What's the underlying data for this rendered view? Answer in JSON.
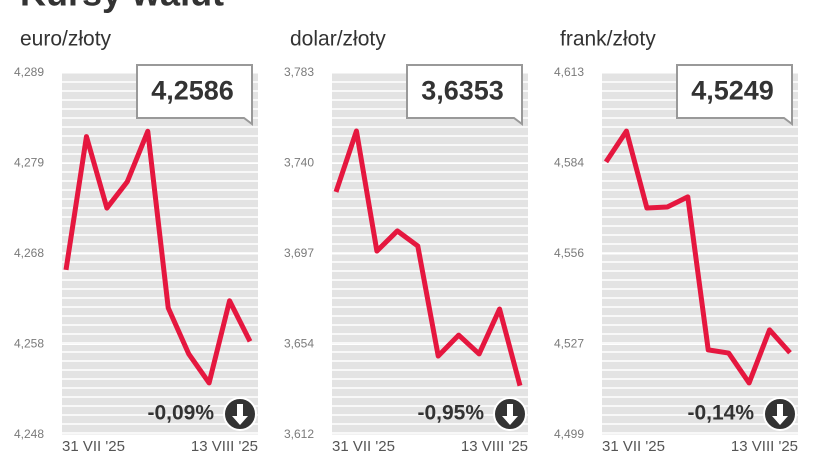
{
  "title": "Kursy walut",
  "chart_data": [
    {
      "type": "line",
      "subtitle": "euro/złoty",
      "color": "#e5173f",
      "categories": [
        "31 VII '25",
        null,
        null,
        null,
        null,
        null,
        null,
        null,
        null,
        "13 VIII '25"
      ],
      "values": [
        4.2667,
        4.2818,
        4.2737,
        4.2767,
        4.2824,
        4.2624,
        4.2572,
        4.2539,
        4.2632,
        4.2586
      ],
      "ylim": [
        4.248,
        4.289
      ],
      "yticks": [
        {
          "value": 4.248,
          "label": "4,248"
        },
        {
          "value": 4.25825,
          "label": "4,258"
        },
        {
          "value": 4.2685,
          "label": "4,268"
        },
        {
          "value": 4.27875,
          "label": "4,279"
        },
        {
          "value": 4.289,
          "label": "4,289"
        }
      ],
      "current": "4,2586",
      "change": "-0,09%"
    },
    {
      "type": "line",
      "subtitle": "dolar/złoty",
      "color": "#e5173f",
      "categories": [
        "31 VII '25",
        null,
        null,
        null,
        null,
        null,
        null,
        null,
        null,
        "13 VIII '25"
      ],
      "values": [
        3.7268,
        3.7556,
        3.6989,
        3.7084,
        3.7013,
        3.6493,
        3.6592,
        3.6503,
        3.6715,
        3.6353
      ],
      "ylim": [
        3.612,
        3.783
      ],
      "yticks": [
        {
          "value": 3.612,
          "label": "3,612"
        },
        {
          "value": 3.65475,
          "label": "3,654"
        },
        {
          "value": 3.6975,
          "label": "3,697"
        },
        {
          "value": 3.74025,
          "label": "3,740"
        },
        {
          "value": 3.783,
          "label": "3,783"
        }
      ],
      "current": "3,6353",
      "change": "-0,95%"
    },
    {
      "type": "line",
      "subtitle": "frank/złoty",
      "color": "#e5173f",
      "categories": [
        "31 VII '25",
        null,
        null,
        null,
        null,
        null,
        null,
        null,
        null,
        "13 VIII '25"
      ],
      "values": [
        4.585,
        4.5947,
        4.5705,
        4.5708,
        4.574,
        4.5258,
        4.5248,
        4.5154,
        4.5321,
        4.5249
      ],
      "ylim": [
        4.499,
        4.613
      ],
      "yticks": [
        {
          "value": 4.499,
          "label": "4,499"
        },
        {
          "value": 4.5275,
          "label": "4,527"
        },
        {
          "value": 4.556,
          "label": "4,556"
        },
        {
          "value": 4.5845,
          "label": "4,584"
        },
        {
          "value": 4.613,
          "label": "4,613"
        }
      ],
      "current": "4,5249",
      "change": "-0,14%"
    }
  ]
}
